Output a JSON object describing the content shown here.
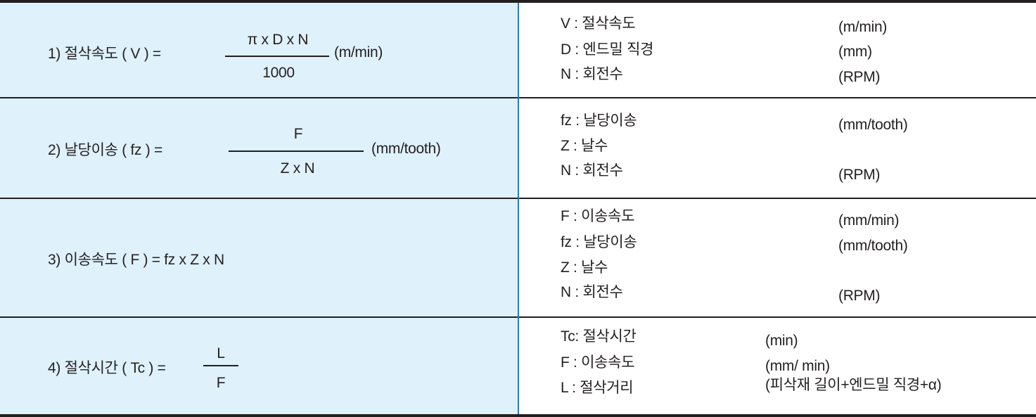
{
  "rows": [
    {
      "formula_label": "1) 절삭속도 ( V ) =",
      "numerator": "π  x D x N",
      "denominator": "1000",
      "unit": "(m/min)",
      "definitions": [
        {
          "term": "V : 절삭속도",
          "unit": "(m/min)"
        },
        {
          "term": "D : 엔드밀 직경",
          "unit": "(mm)"
        },
        {
          "term": "N : 회전수",
          "unit": "(RPM)"
        }
      ]
    },
    {
      "formula_label": "2) 날당이송 ( fz ) =",
      "numerator": "F",
      "denominator": "Z x N",
      "unit": "(mm/tooth)",
      "definitions": [
        {
          "term": "fz : 날당이송",
          "unit": "(mm/tooth)"
        },
        {
          "term": "Z : 날수",
          "unit": ""
        },
        {
          "term": "N : 회전수",
          "unit": "(RPM)"
        }
      ]
    },
    {
      "formula_label": "3) 이송속도 ( F ) =  fz x Z x N",
      "definitions": [
        {
          "term": "F : 이송속도",
          "unit": "(mm/min)"
        },
        {
          "term": "fz : 날당이송",
          "unit": "(mm/tooth)"
        },
        {
          "term": "Z : 날수",
          "unit": ""
        },
        {
          "term": "N : 회전수",
          "unit": "(RPM)"
        }
      ]
    },
    {
      "formula_label": "4) 절삭시간 ( Tc ) =",
      "numerator": "L",
      "denominator": "F",
      "definitions": [
        {
          "term": "Tc: 절삭시간",
          "unit": "(min)"
        },
        {
          "term": "F : 이송속도",
          "unit": "(mm/ min)"
        },
        {
          "term": "L : 절삭거리",
          "unit": "(피삭재 길이+엔드밀 직경+α)"
        }
      ]
    }
  ],
  "colors": {
    "formula_bg": "#dff1fb",
    "divider": "#2a7ab8",
    "rule": "#231f20"
  }
}
